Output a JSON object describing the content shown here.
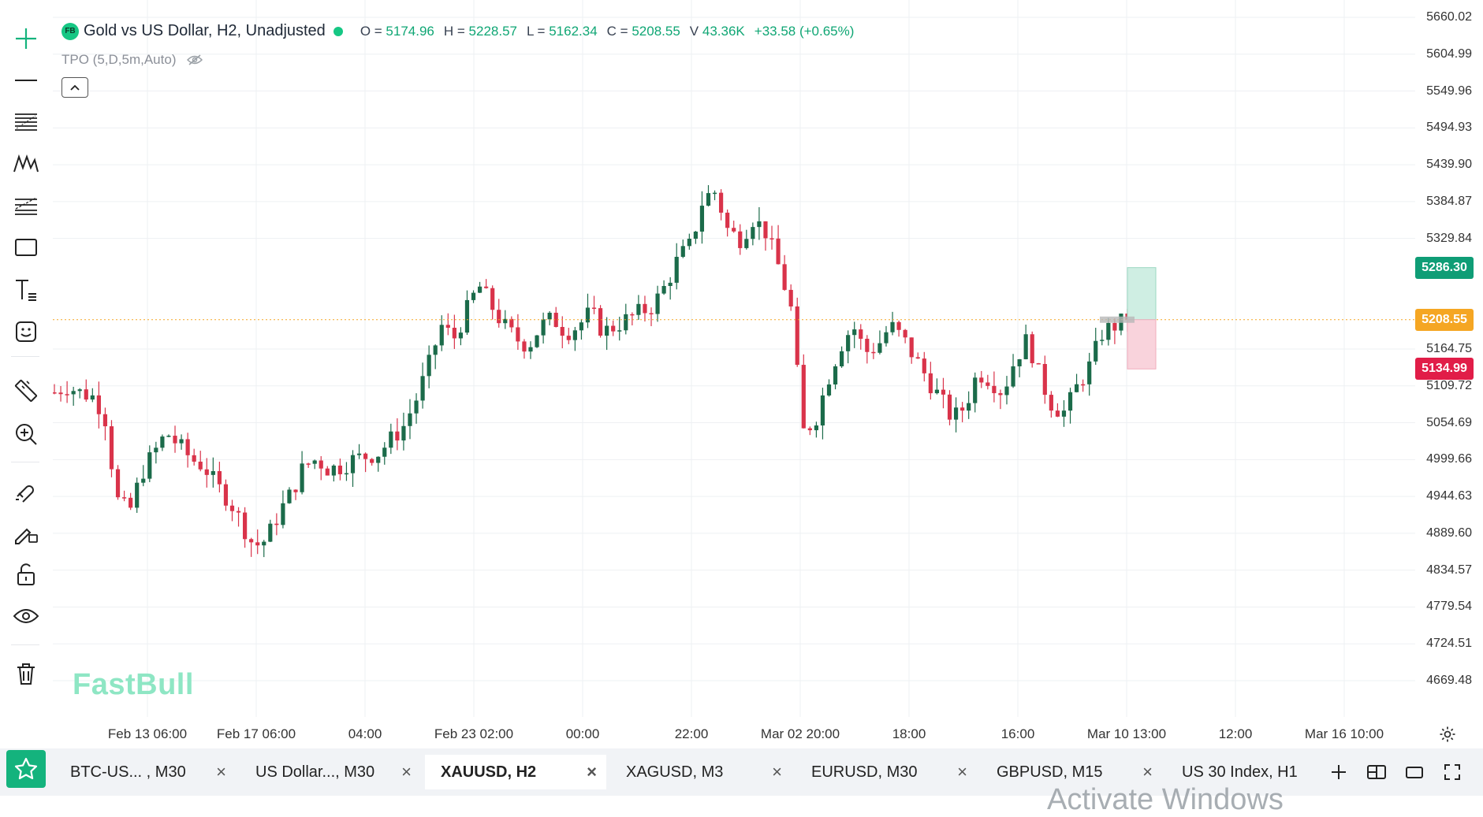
{
  "legend": {
    "badge": "FB",
    "title": "Gold vs US Dollar, H2, Unadjusted",
    "ohlc": [
      {
        "k": "O =",
        "v": "5174.96"
      },
      {
        "k": "H =",
        "v": "5228.57"
      },
      {
        "k": "L =",
        "v": "5162.34"
      },
      {
        "k": "C =",
        "v": "5208.55"
      },
      {
        "k": "V",
        "v": "43.36K"
      }
    ],
    "change": "+33.58 (+0.65%)",
    "indicator": "TPO (5,D,5m,Auto)"
  },
  "price_axis": [
    "5660.02",
    "5604.99",
    "5549.96",
    "5494.93",
    "5439.90",
    "5384.87",
    "5329.84",
    "5164.75",
    "5109.72",
    "5054.69",
    "4999.66",
    "4944.63",
    "4889.60",
    "4834.57",
    "4779.54",
    "4724.51",
    "4669.48"
  ],
  "price_tags": {
    "take_profit": "5286.30",
    "current": "5208.55",
    "stop_loss": "5134.99"
  },
  "time_axis": [
    "Feb 13 06:00",
    "Feb 17 06:00",
    "04:00",
    "Feb 23 02:00",
    "00:00",
    "22:00",
    "Mar 02 20:00",
    "18:00",
    "16:00",
    "Mar 10 13:00",
    "12:00",
    "Mar 16 10:00"
  ],
  "watermark": "FastBull",
  "tabs": [
    {
      "label": "BTC-US...    , M30"
    },
    {
      "label": "US Dollar..., M30"
    },
    {
      "label": "XAUUSD, H2"
    },
    {
      "label": "XAGUSD, M3"
    },
    {
      "label": "EURUSD, M30"
    },
    {
      "label": "GBPUSD, M15"
    },
    {
      "label": "US 30 Index, H1"
    }
  ],
  "tab_close": "×",
  "os_watermark": "Activate Windows",
  "colors": {
    "up": "#1b6b4a",
    "down": "#d9334a",
    "accent": "#16c784",
    "current": "#f5a623",
    "tp": "#0f9d76",
    "sl": "#e11d48"
  },
  "chart_data": {
    "type": "candlestick",
    "symbol": "XAUUSD",
    "timeframe": "H2",
    "ylim": [
      4669.48,
      5660.02
    ],
    "approx_close_path": [
      5100,
      5110,
      5100,
      5095,
      5070,
      4940,
      4920,
      4980,
      5010,
      5040,
      5020,
      5000,
      4990,
      4960,
      4940,
      4905,
      4870,
      4880,
      4920,
      4950,
      4990,
      5000,
      4985,
      4990,
      5000,
      5005,
      5010,
      5030,
      5050,
      5090,
      5140,
      5200,
      5180,
      5220,
      5260,
      5230,
      5200,
      5180,
      5170,
      5200,
      5210,
      5190,
      5200,
      5220,
      5190,
      5200,
      5210,
      5220,
      5230,
      5260,
      5300,
      5320,
      5390,
      5400,
      5340,
      5330,
      5360,
      5340,
      5290,
      5230,
      5040,
      5060,
      5120,
      5170,
      5200,
      5160,
      5170,
      5200,
      5180,
      5150,
      5120,
      5090,
      5060,
      5080,
      5130,
      5120,
      5100,
      5150,
      5180,
      5120,
      5080,
      5070,
      5110,
      5140,
      5190,
      5200,
      5208.55
    ]
  }
}
